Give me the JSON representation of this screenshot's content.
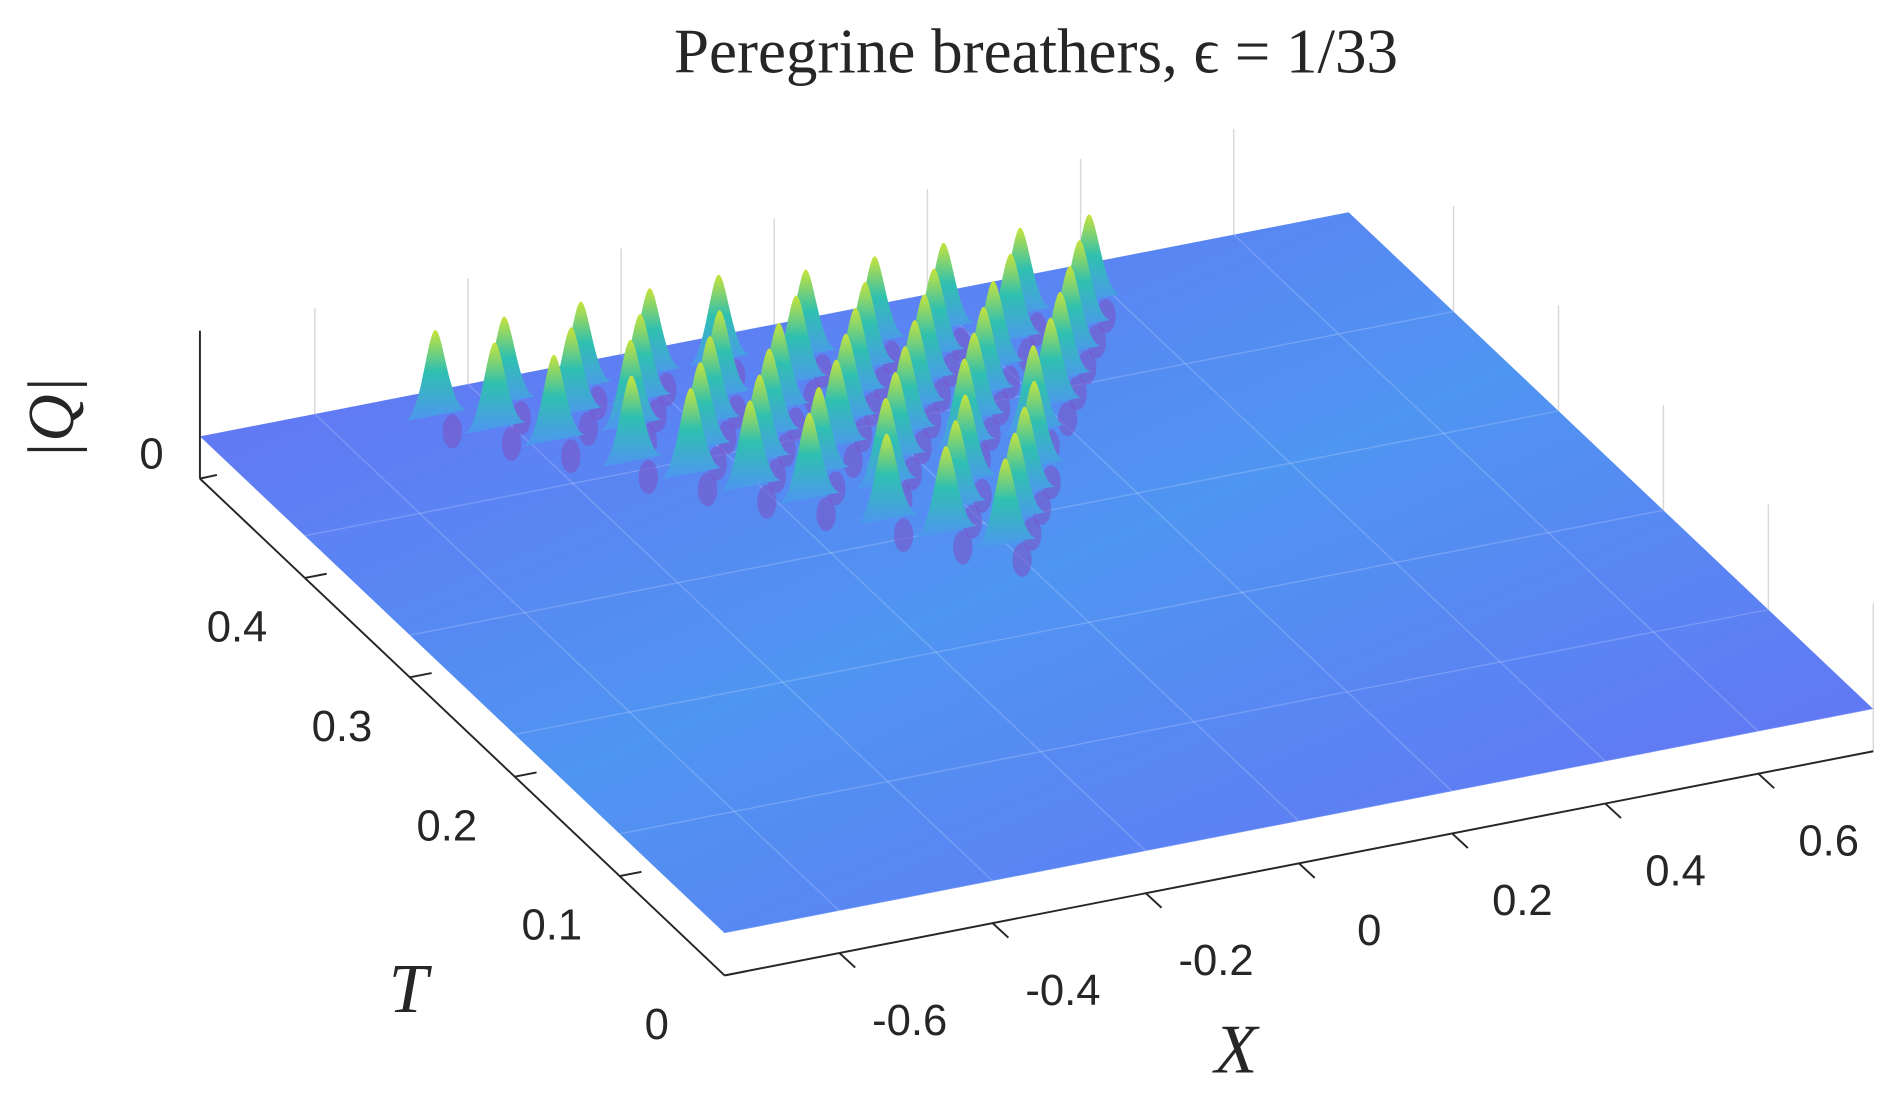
{
  "chart_data": {
    "type": "surface",
    "title": "Peregrine breathers, ϵ = 1/33",
    "xlabel": "X",
    "ylabel": "T",
    "zlabel": "|Q|",
    "xlim": [
      -0.75,
      0.75
    ],
    "ylim": [
      0,
      0.5
    ],
    "zlim": [
      0,
      3.5
    ],
    "xticks": [
      -0.6,
      -0.4,
      -0.2,
      0,
      0.2,
      0.4,
      0.6
    ],
    "yticks": [
      0,
      0.1,
      0.2,
      0.3,
      0.4
    ],
    "zticks": [
      0
    ],
    "grid": true,
    "background": 1,
    "peak_height": 3,
    "colormap": [
      "#6a6cf4",
      "#4f95f2",
      "#2fc0b0",
      "#c8e33a"
    ],
    "peaks": {
      "x": [
        -0.47,
        -0.38,
        -0.28,
        -0.19,
        -0.1,
        0.0,
        0.09,
        0.18,
        0.28,
        0.37,
        -0.42,
        -0.32,
        -0.23,
        -0.14,
        -0.04,
        0.05,
        0.14,
        0.24,
        0.33,
        -0.37,
        -0.27,
        -0.18,
        -0.09,
        0.01,
        0.1,
        0.19,
        0.29,
        -0.31,
        -0.22,
        -0.13,
        -0.03,
        0.06,
        0.15,
        0.25,
        -0.26,
        -0.17,
        -0.07,
        0.02,
        0.11,
        0.21,
        -0.21,
        -0.12,
        -0.02,
        0.07,
        0.16,
        -0.16,
        -0.06,
        0.03,
        0.12,
        -0.1,
        -0.01,
        0.08,
        -0.05,
        0.04,
        0.0
      ],
      "t": [
        0.48,
        0.48,
        0.48,
        0.48,
        0.48,
        0.47,
        0.47,
        0.47,
        0.47,
        0.47,
        0.46,
        0.46,
        0.46,
        0.45,
        0.45,
        0.45,
        0.45,
        0.45,
        0.45,
        0.44,
        0.44,
        0.43,
        0.43,
        0.43,
        0.43,
        0.43,
        0.43,
        0.41,
        0.41,
        0.41,
        0.41,
        0.41,
        0.41,
        0.41,
        0.39,
        0.39,
        0.39,
        0.39,
        0.39,
        0.39,
        0.37,
        0.37,
        0.37,
        0.37,
        0.37,
        0.35,
        0.35,
        0.34,
        0.34,
        0.32,
        0.32,
        0.32,
        0.3,
        0.3,
        0.28
      ]
    }
  }
}
